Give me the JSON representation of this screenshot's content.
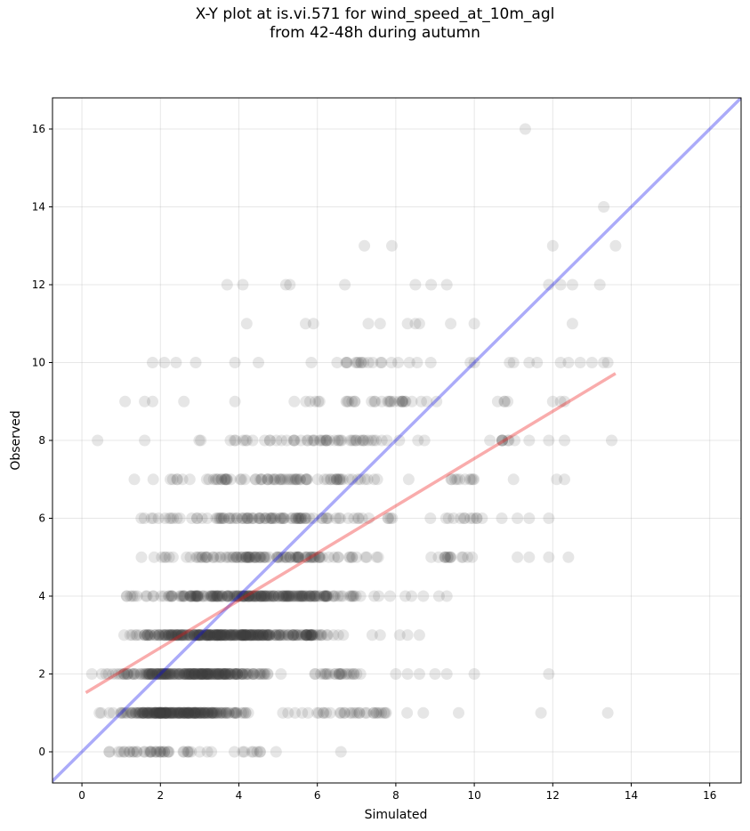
{
  "chart_data": {
    "type": "scatter",
    "title": "X-Y plot at is.vi.571 for wind_speed_at_10m_agl",
    "subtitle": "from 42-48h during autumn",
    "xlabel": "Simulated",
    "ylabel": "Observed",
    "xlim": [
      -0.75,
      16.8
    ],
    "ylim": [
      -0.8,
      16.8
    ],
    "xticks": [
      "0",
      "2",
      "4",
      "6",
      "8",
      "10",
      "12",
      "14",
      "16"
    ],
    "yticks": [
      "0",
      "2",
      "4",
      "6",
      "8",
      "10",
      "12",
      "14",
      "16"
    ],
    "grid": true,
    "point_color": "#404040",
    "point_alpha": 0.13,
    "reference_line": {
      "type": "y=x",
      "color": "#0000ee",
      "alpha": 0.33
    },
    "regression_line": {
      "color": "#ee1111",
      "alpha": 0.35,
      "x": [
        0.1,
        13.6
      ],
      "y": [
        1.52,
        9.72
      ]
    },
    "rows": [
      {
        "y": 0,
        "ranges": [
          [
            0.4,
            3.6,
            30
          ],
          [
            3.6,
            5.2,
            8
          ]
        ],
        "points": [
          0.7,
          0.7,
          1.3,
          1.4,
          2.0,
          2.1,
          2.6,
          2.7,
          3.3,
          4.1,
          6.6
        ]
      },
      {
        "y": 1,
        "ranges": [
          [
            0.2,
            4.6,
            220
          ],
          [
            4.6,
            8.6,
            30
          ]
        ],
        "points": [
          6.6,
          7.5,
          7.7,
          8.7,
          9.6,
          11.7,
          13.4
        ]
      },
      {
        "y": 2,
        "ranges": [
          [
            0.1,
            5.6,
            230
          ],
          [
            5.6,
            7.2,
            22
          ]
        ],
        "points": [
          7.0,
          7.1,
          8.0,
          8.3,
          8.6,
          9.0,
          9.3,
          10.0,
          11.9
        ]
      },
      {
        "y": 3,
        "ranges": [
          [
            0.2,
            7.4,
            320
          ]
        ],
        "points": [
          7.4,
          7.6,
          8.1,
          8.3,
          8.6
        ]
      },
      {
        "y": 4,
        "ranges": [
          [
            0.3,
            8.5,
            230
          ]
        ],
        "points": [
          8.4,
          8.7,
          9.1,
          9.3
        ]
      },
      {
        "y": 5,
        "ranges": [
          [
            0.8,
            8.6,
            110
          ],
          [
            8.6,
            10.5,
            14
          ]
        ],
        "points": [
          11.1,
          11.4,
          11.9,
          12.4
        ]
      },
      {
        "y": 6,
        "ranges": [
          [
            0.8,
            8.6,
            95
          ],
          [
            8.6,
            10.5,
            10
          ]
        ],
        "points": [
          9.9,
          10.2,
          10.7,
          11.1,
          11.4,
          11.9
        ]
      },
      {
        "y": 7,
        "ranges": [
          [
            0.9,
            9.0,
            80
          ],
          [
            9.0,
            10.5,
            10
          ]
        ],
        "points": [
          11.0,
          12.1,
          12.3
        ]
      },
      {
        "y": 8,
        "ranges": [
          [
            2.0,
            10.1,
            55
          ],
          [
            10.1,
            11.2,
            8
          ]
        ],
        "points": [
          0.4,
          1.6,
          11.4,
          11.9,
          12.3,
          13.5
        ]
      },
      {
        "y": 9,
        "ranges": [
          [
            4.5,
            10.4,
            32
          ],
          [
            10.4,
            11.0,
            4
          ]
        ],
        "points": [
          1.1,
          1.6,
          1.8,
          2.6,
          3.9,
          12.0,
          12.2,
          12.3
        ]
      },
      {
        "y": 10,
        "ranges": [
          [
            4.6,
            9.5,
            20
          ]
        ],
        "points": [
          1.8,
          2.1,
          2.4,
          2.9,
          3.9,
          4.5,
          9.9,
          10.0,
          10.9,
          11.0,
          11.4,
          11.6,
          12.2,
          12.4,
          12.7,
          13.0,
          13.3,
          13.4
        ]
      },
      {
        "y": 11,
        "ranges": [],
        "points": [
          4.2,
          5.7,
          5.9,
          7.3,
          7.6,
          8.3,
          8.5,
          8.6,
          9.4,
          10.0,
          12.5
        ]
      },
      {
        "y": 12,
        "ranges": [],
        "points": [
          3.7,
          4.1,
          5.2,
          5.3,
          6.7,
          8.5,
          8.9,
          9.3,
          11.9,
          12.2,
          12.5,
          13.2
        ]
      },
      {
        "y": 13,
        "ranges": [],
        "points": [
          7.2,
          7.9,
          12.0,
          13.6
        ]
      },
      {
        "y": 14,
        "ranges": [],
        "points": [
          13.3
        ]
      },
      {
        "y": 16,
        "ranges": [],
        "points": [
          11.3
        ]
      }
    ]
  }
}
